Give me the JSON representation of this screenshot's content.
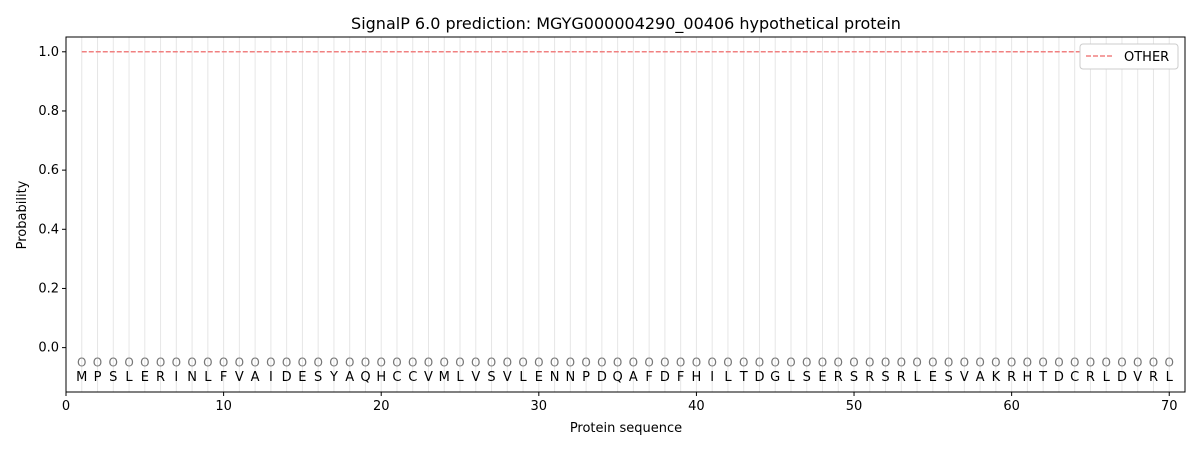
{
  "chart_data": {
    "type": "line",
    "title": "SignalP 6.0 prediction: MGYG000004290_00406 hypothetical protein",
    "xlabel": "Protein sequence",
    "ylabel": "Probability",
    "xlim": [
      0,
      71
    ],
    "ylim": [
      -0.15,
      1.05
    ],
    "xticks": [
      0,
      10,
      20,
      30,
      40,
      50,
      60,
      70
    ],
    "yticks": [
      0.0,
      0.2,
      0.4,
      0.6,
      0.8,
      1.0
    ],
    "ytick_labels": [
      "0.0",
      "0.2",
      "0.4",
      "0.6",
      "0.8",
      "1.0"
    ],
    "grid": "vertical at each residue",
    "legend_placement": "top-right",
    "sequence": [
      "M",
      "P",
      "S",
      "L",
      "E",
      "R",
      "I",
      "N",
      "L",
      "F",
      "V",
      "A",
      "I",
      "D",
      "E",
      "S",
      "Y",
      "A",
      "Q",
      "H",
      "C",
      "C",
      "V",
      "M",
      "L",
      "V",
      "S",
      "V",
      "L",
      "E",
      "N",
      "N",
      "P",
      "D",
      "Q",
      "A",
      "F",
      "D",
      "F",
      "H",
      "I",
      "L",
      "T",
      "D",
      "G",
      "L",
      "S",
      "E",
      "R",
      "S",
      "R",
      "S",
      "R",
      "L",
      "E",
      "S",
      "V",
      "A",
      "K",
      "R",
      "H",
      "T",
      "D",
      "C",
      "R",
      "L",
      "D",
      "V",
      "R",
      "L"
    ],
    "region_label": "O",
    "region_label_y": -0.05,
    "series": [
      {
        "name": "OTHER",
        "color": "#f08080",
        "style": "dashed",
        "x_start": 1,
        "x_end": 70,
        "value": 1.0
      }
    ]
  }
}
